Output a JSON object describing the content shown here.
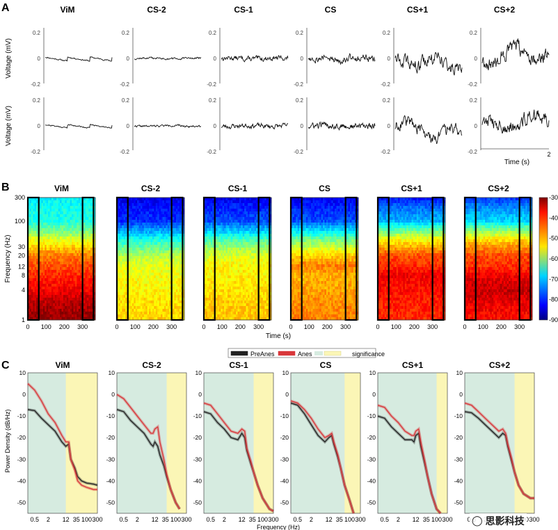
{
  "panel_labels": [
    "A",
    "B",
    "C"
  ],
  "regions": [
    "ViM",
    "CS-2",
    "CS-1",
    "CS",
    "CS+1",
    "CS+2"
  ],
  "watermark_text": "思影科技",
  "colors": {
    "trace": "#111111",
    "pre_anes": "#222222",
    "anes": "#d8373a",
    "significance": "#fbf6b6",
    "nonsignificance": "#d6ebe0"
  },
  "chart_data": [
    {
      "panel": "A",
      "type": "line",
      "ylabel": "Voltage (mV)",
      "yticks": [
        "0.2",
        "0",
        "-0.2"
      ],
      "ylim": [
        -0.2,
        0.2
      ],
      "xlabel": "Time (s)",
      "xticks": [
        "2"
      ],
      "xlim": [
        0,
        2
      ],
      "traces": [
        {
          "region": "ViM",
          "row": 1,
          "amplitude": 0.03,
          "noise": 0.008,
          "drift": -0.02,
          "seed": 11
        },
        {
          "region": "CS-2",
          "row": 1,
          "amplitude": 0.003,
          "noise": 0.006,
          "drift": 0.0,
          "seed": 12
        },
        {
          "region": "CS-1",
          "row": 1,
          "amplitude": 0.004,
          "noise": 0.015,
          "drift": 0.0,
          "seed": 13
        },
        {
          "region": "CS",
          "row": 1,
          "amplitude": 0.006,
          "noise": 0.025,
          "drift": 0.0,
          "seed": 14
        },
        {
          "region": "CS+1",
          "row": 1,
          "amplitude": 0.04,
          "noise": 0.04,
          "drift": -0.06,
          "seed": 15
        },
        {
          "region": "CS+2",
          "row": 1,
          "amplitude": 0.05,
          "noise": 0.045,
          "drift": 0.06,
          "seed": 16
        },
        {
          "region": "ViM",
          "row": 2,
          "amplitude": 0.025,
          "noise": 0.008,
          "drift": -0.03,
          "seed": 21
        },
        {
          "region": "CS-2",
          "row": 2,
          "amplitude": 0.003,
          "noise": 0.006,
          "drift": 0.0,
          "seed": 22
        },
        {
          "region": "CS-1",
          "row": 2,
          "amplitude": 0.004,
          "noise": 0.015,
          "drift": 0.0,
          "seed": 23
        },
        {
          "region": "CS",
          "row": 2,
          "amplitude": 0.006,
          "noise": 0.02,
          "drift": 0.0,
          "seed": 24
        },
        {
          "region": "CS+1",
          "row": 2,
          "amplitude": 0.05,
          "noise": 0.035,
          "drift": -0.08,
          "seed": 25
        },
        {
          "region": "CS+2",
          "row": 2,
          "amplitude": 0.04,
          "noise": 0.045,
          "drift": 0.06,
          "seed": 26
        }
      ]
    },
    {
      "panel": "B",
      "type": "heatmap",
      "ylabel": "Frequency (Hz)",
      "yticks": [
        "300",
        "100",
        "30",
        "20",
        "12",
        "8",
        "4",
        "1"
      ],
      "ylim": [
        1,
        300
      ],
      "yscale": "log",
      "xlabel": "Time (s)",
      "xticks": [
        "0",
        "100",
        "200",
        "300"
      ],
      "xlim": [
        0,
        370
      ],
      "colorbar": {
        "ticks": [
          "-30",
          "-40",
          "-50",
          "-60",
          "-70",
          "-80",
          "-90"
        ],
        "range": [
          -90,
          -30
        ]
      },
      "highlight_windows_s": [
        [
          0,
          60
        ],
        [
          300,
          360
        ]
      ],
      "profiles": [
        {
          "region": "ViM",
          "freq_hz": [
            1,
            4,
            8,
            12,
            20,
            30,
            60,
            100,
            300
          ],
          "power_db": [
            -31,
            -37,
            -40,
            -42,
            -45,
            -50,
            -60,
            -66,
            -68
          ]
        },
        {
          "region": "CS-2",
          "freq_hz": [
            1,
            4,
            8,
            12,
            20,
            30,
            60,
            100,
            300
          ],
          "power_db": [
            -50,
            -52,
            -53,
            -54,
            -57,
            -62,
            -72,
            -80,
            -84
          ]
        },
        {
          "region": "CS-1",
          "freq_hz": [
            1,
            4,
            8,
            12,
            20,
            30,
            60,
            100,
            300
          ],
          "power_db": [
            -49,
            -51,
            -52,
            -52,
            -55,
            -59,
            -70,
            -78,
            -84
          ]
        },
        {
          "region": "CS",
          "freq_hz": [
            1,
            4,
            8,
            12,
            20,
            30,
            60,
            100,
            300
          ],
          "power_db": [
            -45,
            -47,
            -48,
            -45,
            -50,
            -56,
            -68,
            -78,
            -84
          ]
        },
        {
          "region": "CS+1",
          "freq_hz": [
            1,
            4,
            8,
            12,
            20,
            30,
            60,
            100,
            300
          ],
          "power_db": [
            -40,
            -38,
            -37,
            -40,
            -42,
            -48,
            -60,
            -72,
            -82
          ]
        },
        {
          "region": "CS+2",
          "freq_hz": [
            1,
            4,
            8,
            12,
            20,
            30,
            60,
            100,
            300
          ],
          "power_db": [
            -38,
            -34,
            -37,
            -40,
            -42,
            -46,
            -58,
            -70,
            -80
          ]
        }
      ]
    },
    {
      "panel": "C",
      "type": "line",
      "ylabel": "Power Density (dB/Hz)",
      "yticks": [
        "10",
        "0",
        "-10",
        "-20",
        "-30",
        "-40",
        "-50"
      ],
      "ylim": [
        -55,
        10
      ],
      "xlabel": "Frequency (Hz)",
      "xscale": "log",
      "xlim": [
        0.25,
        300
      ],
      "legend": {
        "position": "top-center",
        "entries": [
          "PreAnes",
          "Anes",
          "significance"
        ]
      },
      "panels": [
        {
          "region": "ViM",
          "xticks": [
            "0.5",
            "2",
            "12",
            "35",
            "100",
            "300"
          ],
          "significant_from_hz": 12,
          "freq_hz": [
            0.25,
            0.5,
            1,
            2,
            4,
            8,
            12,
            16,
            20,
            30,
            40,
            60,
            100,
            200,
            300
          ],
          "pre_anes_db": [
            -7,
            -7.5,
            -11,
            -14,
            -17,
            -22,
            -24,
            -23,
            -30,
            -34,
            -38,
            -40,
            -41,
            -41.5,
            -42
          ],
          "anes_db": [
            5,
            2,
            -3,
            -9,
            -13,
            -19,
            -22,
            -22,
            -30,
            -35,
            -40,
            -42,
            -43,
            -44,
            -44
          ]
        },
        {
          "region": "CS-2",
          "xticks": [
            "0.5",
            "2",
            "12",
            "35",
            "100",
            "300"
          ],
          "significant_from_hz": 40,
          "freq_hz": [
            0.25,
            0.5,
            1,
            2,
            4,
            8,
            10,
            12,
            16,
            20,
            30,
            40,
            60,
            100,
            150
          ],
          "pre_anes_db": [
            -7,
            -8,
            -12,
            -15,
            -18,
            -23,
            -24,
            -22,
            -24,
            -28,
            -33,
            -38,
            -44,
            -50,
            -53
          ],
          "anes_db": [
            0,
            -2,
            -6,
            -10,
            -14,
            -18,
            -18,
            -16,
            -15,
            -22,
            -30,
            -37,
            -44,
            -50,
            -53
          ]
        },
        {
          "region": "CS-1",
          "xticks": [
            "0.5",
            "2",
            "12",
            "35",
            "100",
            "300"
          ],
          "significant_from_hz": 40,
          "freq_hz": [
            0.25,
            0.5,
            1,
            2,
            4,
            8,
            12,
            16,
            20,
            30,
            40,
            60,
            100,
            200,
            300
          ],
          "pre_anes_db": [
            -8,
            -9,
            -13,
            -16,
            -20,
            -21,
            -18,
            -20,
            -26,
            -32,
            -36,
            -42,
            -48,
            -53,
            -54
          ],
          "anes_db": [
            -4,
            -5,
            -9,
            -13,
            -17,
            -18,
            -16,
            -17,
            -25,
            -31,
            -36,
            -42,
            -48,
            -53,
            -54
          ]
        },
        {
          "region": "CS",
          "xticks": [
            "0.5",
            "2",
            "12",
            "35",
            "100",
            "300"
          ],
          "significant_from_hz": 60,
          "freq_hz": [
            0.25,
            0.5,
            1,
            2,
            4,
            8,
            12,
            16,
            20,
            30,
            40,
            60,
            100,
            150
          ],
          "pre_anes_db": [
            -4,
            -5,
            -9,
            -14,
            -19,
            -22,
            -20,
            -19,
            -23,
            -29,
            -34,
            -42,
            -49,
            -55
          ],
          "anes_db": [
            -3,
            -4,
            -7,
            -11,
            -16,
            -20,
            -19,
            -18,
            -22,
            -28,
            -34,
            -42,
            -49,
            -55
          ]
        },
        {
          "region": "CS+1",
          "xticks": [
            "0.5",
            "2",
            "12",
            "35",
            "100",
            "300"
          ],
          "significant_from_hz": 100,
          "freq_hz": [
            0.25,
            0.5,
            1,
            2,
            4,
            8,
            10,
            12,
            16,
            20,
            30,
            40,
            60,
            100,
            150
          ],
          "pre_anes_db": [
            -10,
            -11,
            -15,
            -18,
            -21,
            -21,
            -22,
            -19,
            -18,
            -24,
            -32,
            -38,
            -46,
            -53,
            -55
          ],
          "anes_db": [
            -5,
            -6,
            -10,
            -13,
            -17,
            -19,
            -19,
            -17,
            -16,
            -22,
            -31,
            -38,
            -46,
            -53,
            -55
          ]
        },
        {
          "region": "CS+2",
          "xticks": [
            "0.5",
            "2",
            "12",
            "35",
            "100",
            "300"
          ],
          "significant_from_hz": 40,
          "freq_hz": [
            0.25,
            0.5,
            1,
            2,
            4,
            8,
            12,
            16,
            20,
            30,
            40,
            60,
            100,
            200,
            300
          ],
          "pre_anes_db": [
            -8,
            -8.5,
            -11,
            -14,
            -17,
            -20,
            -18,
            -19,
            -24,
            -31,
            -36,
            -42,
            -46,
            -48,
            -48
          ],
          "anes_db": [
            -4,
            -5,
            -8,
            -11,
            -14,
            -17,
            -16,
            -18,
            -23,
            -30,
            -36,
            -42,
            -46,
            -48,
            -48
          ]
        }
      ]
    }
  ]
}
